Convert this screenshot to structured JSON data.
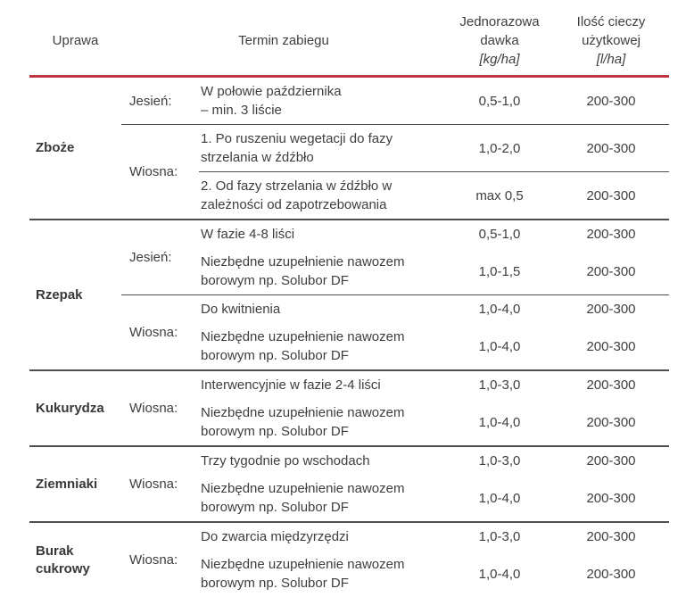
{
  "header": {
    "uprawa": "Uprawa",
    "termin": "Termin zabiegu",
    "dawka": [
      "Jednorazowa",
      "dawka",
      "[kg/ha]"
    ],
    "ciecz": [
      "Ilość cieczy",
      "użytkowej",
      "[l/ha]"
    ]
  },
  "sections": [
    {
      "crop": "Zboże",
      "groups": [
        {
          "season": "Jesień:",
          "rows": [
            {
              "desc": "W połowie października\n– min. 3 liście",
              "dose": "0,5-1,0",
              "liquid": "200-300"
            }
          ]
        },
        {
          "season": "Wiosna:",
          "rows": [
            {
              "desc": "1. Po ruszeniu wegetacji do fazy\nstrzelania w źdźbło",
              "dose": "1,0-2,0",
              "liquid": "200-300"
            },
            {
              "desc": "2. Od fazy strzelania w źdźbło w\nzależności od zapotrzebowania",
              "dose": "max 0,5",
              "liquid": "200-300"
            }
          ]
        }
      ]
    },
    {
      "crop": "Rzepak",
      "groups": [
        {
          "season": "Jesień:",
          "rows": [
            {
              "desc": "W fazie 4-8 liści",
              "dose": "0,5-1,0",
              "liquid": "200-300"
            },
            {
              "desc": "Niezbędne uzupełnienie nawozem\nborowym np. Solubor DF",
              "dose": "1,0-1,5",
              "liquid": "200-300"
            }
          ]
        },
        {
          "season": "Wiosna:",
          "rows": [
            {
              "desc": "Do kwitnienia",
              "dose": "1,0-4,0",
              "liquid": "200-300"
            },
            {
              "desc": "Niezbędne uzupełnienie nawozem\nborowym np. Solubor DF",
              "dose": "1,0-4,0",
              "liquid": "200-300"
            }
          ]
        }
      ]
    },
    {
      "crop": "Kukurydza",
      "groups": [
        {
          "season": "Wiosna:",
          "rows": [
            {
              "desc": "Interwencyjnie w fazie 2-4 liści",
              "dose": "1,0-3,0",
              "liquid": "200-300"
            },
            {
              "desc": "Niezbędne uzupełnienie nawozem\nborowym np. Solubor DF",
              "dose": "1,0-4,0",
              "liquid": "200-300"
            }
          ]
        }
      ]
    },
    {
      "crop": "Ziemniaki",
      "groups": [
        {
          "season": "Wiosna:",
          "rows": [
            {
              "desc": "Trzy tygodnie po wschodach",
              "dose": "1,0-3,0",
              "liquid": "200-300"
            },
            {
              "desc": "Niezbędne uzupełnienie nawozem\nborowym np. Solubor DF",
              "dose": "1,0-4,0",
              "liquid": "200-300"
            }
          ]
        }
      ]
    },
    {
      "crop": "Burak cukrowy",
      "groups": [
        {
          "season": "Wiosna:",
          "rows": [
            {
              "desc": "Do zwarcia międzyrzędzi",
              "dose": "1,0-3,0",
              "liquid": "200-300"
            },
            {
              "desc": "Niezbędne uzupełnienie nawozem\nborowym np. Solubor DF",
              "dose": "1,0-4,0",
              "liquid": "200-300"
            }
          ]
        }
      ]
    }
  ],
  "colors": {
    "accent_red": "#bf3341",
    "divider_gray": "#4d4d4d",
    "text": "#3e3e3e"
  }
}
